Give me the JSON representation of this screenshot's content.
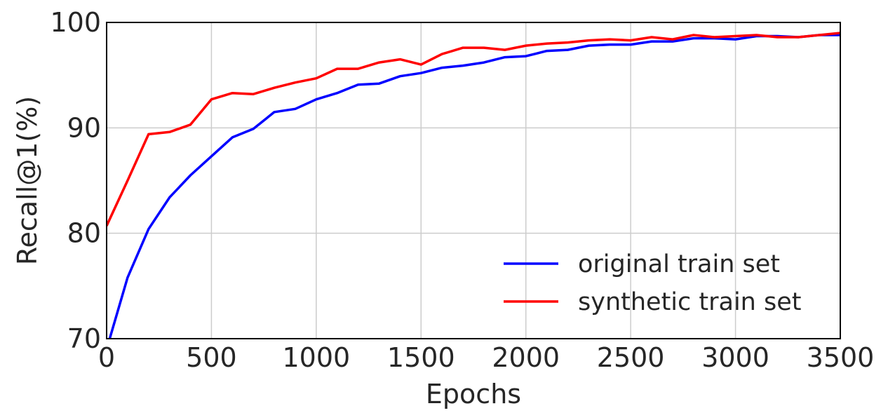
{
  "chart_data": {
    "type": "line",
    "title": "",
    "xlabel": "Epochs",
    "ylabel": "Recall@1(%)",
    "xlim": [
      0,
      3500
    ],
    "ylim": [
      70,
      100
    ],
    "xticks": [
      0,
      500,
      1000,
      1500,
      2000,
      2500,
      3000,
      3500
    ],
    "yticks": [
      70,
      80,
      90,
      100
    ],
    "grid": true,
    "legend_position": "lower-right",
    "x": [
      0,
      100,
      200,
      300,
      400,
      500,
      600,
      700,
      800,
      900,
      1000,
      1100,
      1200,
      1300,
      1400,
      1500,
      1600,
      1700,
      1800,
      1900,
      2000,
      2100,
      2200,
      2300,
      2400,
      2500,
      2600,
      2700,
      2800,
      2900,
      3000,
      3100,
      3200,
      3300,
      3400,
      3500
    ],
    "series": [
      {
        "name": "original train set",
        "color": "#0000ff",
        "values": [
          69.0,
          75.8,
          80.4,
          83.4,
          85.5,
          87.3,
          89.1,
          89.9,
          91.5,
          91.8,
          92.7,
          93.3,
          94.1,
          94.2,
          94.9,
          95.2,
          95.7,
          95.9,
          96.2,
          96.7,
          96.8,
          97.3,
          97.4,
          97.8,
          97.9,
          97.9,
          98.2,
          98.2,
          98.5,
          98.5,
          98.4,
          98.7,
          98.7,
          98.6,
          98.8,
          98.8
        ]
      },
      {
        "name": "synthetic train set",
        "color": "#ff0000",
        "values": [
          80.7,
          85.0,
          89.4,
          89.6,
          90.3,
          92.7,
          93.3,
          93.2,
          93.8,
          94.3,
          94.7,
          95.6,
          95.6,
          96.2,
          96.5,
          96.0,
          97.0,
          97.6,
          97.6,
          97.4,
          97.8,
          98.0,
          98.1,
          98.3,
          98.4,
          98.3,
          98.6,
          98.4,
          98.8,
          98.6,
          98.7,
          98.8,
          98.6,
          98.6,
          98.8,
          99.0
        ]
      }
    ]
  }
}
